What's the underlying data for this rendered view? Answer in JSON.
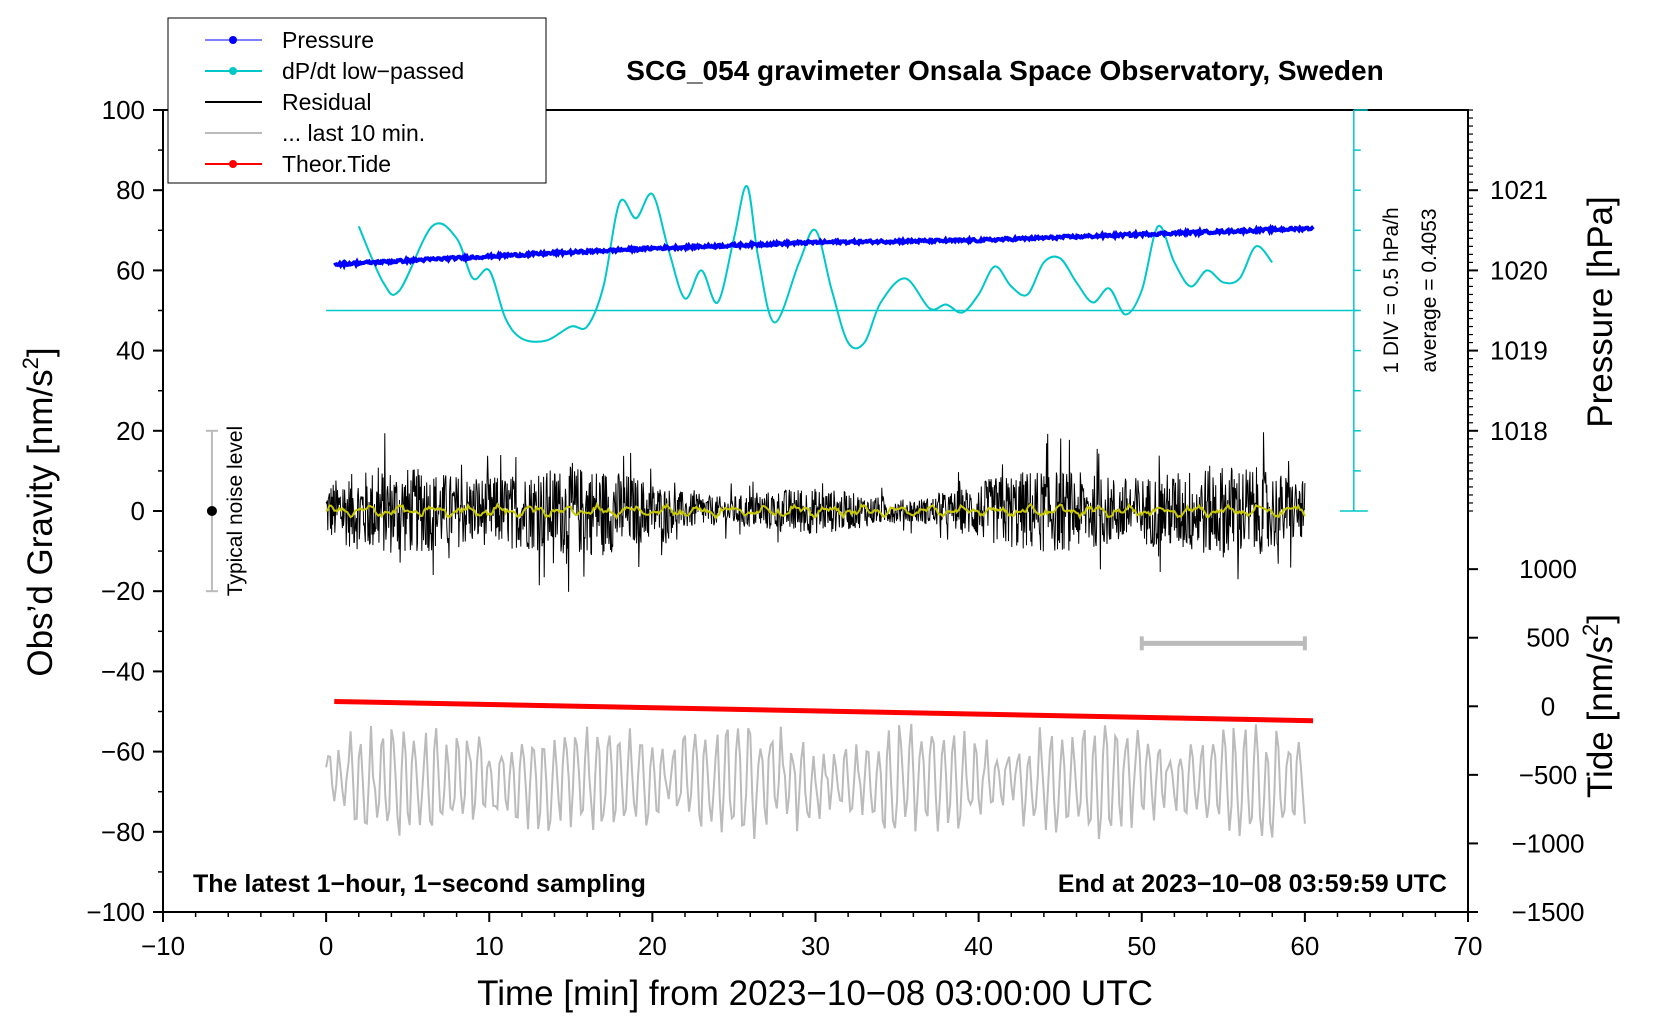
{
  "chart_data": {
    "type": "line",
    "title": "SCG_054 gravimeter Onsala Space Observatory, Sweden",
    "xlabel": "Time [min] from 2023−10−08 03:00:00 UTC",
    "ylabel_main": "Obs’d Gravity [nm/s",
    "ylabel_main_sup": "2",
    "ylabel_main_end": "]",
    "ylabel_pressure": "Pressure [hPa]",
    "ylabel_tide": "Tide [nm/s",
    "ylabel_tide_sup": "2",
    "ylabel_tide_end": "]",
    "xlim": [
      -10,
      70
    ],
    "ylim": [
      -100,
      100
    ],
    "x_ticks": [
      -10,
      0,
      10,
      20,
      30,
      40,
      50,
      60,
      70
    ],
    "x_tick_labels": [
      "−10",
      "0",
      "10",
      "20",
      "30",
      "40",
      "50",
      "60",
      "70"
    ],
    "y_ticks": [
      -100,
      -80,
      -60,
      -40,
      -20,
      0,
      20,
      40,
      60,
      80,
      100
    ],
    "y_tick_labels": [
      "−100",
      "−80",
      "−60",
      "−40",
      "−20",
      "0",
      "20",
      "40",
      "60",
      "80",
      "100"
    ],
    "pressure_axis": {
      "ticks": [
        1018,
        1019,
        1020,
        1021
      ],
      "tick_labels": [
        "1018",
        "1019",
        "1020",
        "1021"
      ],
      "main_equiv": {
        "1018": 20,
        "1019": 40,
        "1020": 60,
        "1021": 80
      }
    },
    "tide_axis": {
      "ticks": [
        -1500,
        -1000,
        -500,
        0,
        500,
        1000
      ],
      "tick_labels": [
        "−1500",
        "−1000",
        "−500",
        "0",
        "500",
        "1000"
      ],
      "main_equiv": {
        "-1500": -100,
        "-1000": -82.9,
        "-500": -65.8,
        "0": -48.7,
        "500": -31.6,
        "1000": -14.5
      }
    },
    "series": [
      {
        "name": "Pressure",
        "color": "#0000ff",
        "x": [
          0.5,
          10,
          20,
          30,
          40,
          50,
          60.5
        ],
        "y": [
          61.5,
          63.5,
          65.5,
          67,
          67.5,
          69,
          70.5
        ]
      },
      {
        "name": "dP/dt low−passed",
        "color": "#00c8c8",
        "baseline": 50,
        "x": [
          2,
          3.5,
          4.5,
          6.5,
          8,
          9,
          10,
          11,
          12,
          13.5,
          15,
          16,
          17,
          18,
          19,
          20,
          21,
          22,
          23,
          24,
          25,
          25.8,
          26.5,
          27.5,
          29,
          30,
          31,
          32,
          33,
          34,
          35.5,
          37,
          38,
          39,
          40,
          41,
          42,
          43,
          44,
          45,
          46,
          47,
          48,
          49,
          50,
          51,
          52,
          53,
          54,
          55,
          56,
          57,
          58
        ],
        "y": [
          71,
          57,
          55,
          71,
          68,
          58,
          60,
          48,
          43,
          42.5,
          46,
          46,
          56,
          77,
          73,
          79,
          65,
          53,
          60,
          52,
          68,
          81,
          63,
          47,
          62,
          70,
          55,
          42,
          42,
          52,
          58,
          50.5,
          51.5,
          49.5,
          54,
          61,
          56,
          54,
          62,
          63,
          57,
          52,
          55.5,
          49,
          55,
          71,
          62,
          56,
          60,
          57,
          58,
          66,
          62
        ]
      },
      {
        "name": "Residual",
        "color": "#000000",
        "x_range": [
          0,
          60
        ],
        "center": 0,
        "amplitude": 12
      },
      {
        "name": "... last 10 min.",
        "color": "#bbbbbb",
        "center": -67,
        "amplitude": 12,
        "marker_range": [
          50,
          60
        ],
        "marker_y": -33
      },
      {
        "name": "Theor.Tide",
        "color": "#ff0000",
        "x": [
          0.5,
          60.5
        ],
        "y": [
          -47.5,
          -52.3
        ]
      },
      {
        "name": "smoothed residual",
        "color": "#c8c800",
        "x_range": [
          0,
          60
        ],
        "center": 0
      }
    ],
    "noise_indicator": {
      "label": "Typical noise level",
      "x": -7,
      "center": 0,
      "min": -20,
      "max": 20
    },
    "dpdt_scale": {
      "label1": "1 DIV = 0.5 hPa/h",
      "label2": "average = 0.4053",
      "x": 63,
      "bottom": 0,
      "top": 100,
      "div_step": 10
    },
    "annotations": {
      "bottom_left": "The latest 1−hour, 1−second sampling",
      "bottom_right": "End at 2023−10−08 03:59:59 UTC"
    },
    "legend": {
      "placement": "top-left",
      "items": [
        {
          "label": "Pressure",
          "color": "#0000ff",
          "marker": true
        },
        {
          "label": "dP/dt low−passed",
          "color": "#00c8c8",
          "marker": true
        },
        {
          "label": "Residual",
          "color": "#000000",
          "marker": false
        },
        {
          "label": "... last 10 min.",
          "color": "#bbbbbb",
          "marker": false
        },
        {
          "label": "Theor.Tide",
          "color": "#ff0000",
          "marker": true
        }
      ]
    }
  }
}
